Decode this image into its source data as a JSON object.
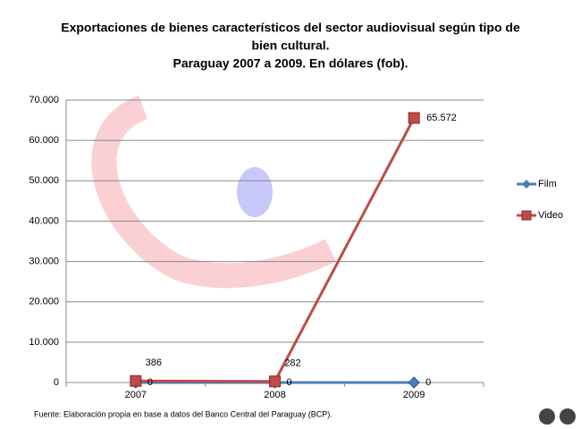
{
  "chart_data": {
    "type": "line",
    "title": [
      "Exportaciones  de bienes característicos  del sector audiovisual  según tipo de",
      "bien cultural.",
      "Paraguay  2007 a 2009. En dólares (fob)."
    ],
    "source": "Fuente:  Elaboración propia en base a datos del Banco Central del Paraguay (BCP).",
    "categories": [
      "2007",
      "2008",
      "2009"
    ],
    "series": [
      {
        "name": "Film",
        "color": "#4a7ebb",
        "values": [
          0,
          0,
          0
        ]
      },
      {
        "name": "Video",
        "color": "#be4b48",
        "values": [
          386,
          282,
          65572
        ],
        "value_labels": [
          "386",
          "282",
          "65.572"
        ]
      }
    ],
    "ylim": [
      0,
      70000
    ],
    "yticks": [
      0,
      {
        "value": 10000,
        "label": "10.000"
      },
      {
        "value": 20000,
        "label": "20.000"
      },
      {
        "value": 30000,
        "label": "30.000"
      },
      {
        "value": 40000,
        "label": "40.000"
      },
      {
        "value": 50000,
        "label": "50.000"
      },
      {
        "value": 60000,
        "label": "60.000"
      },
      {
        "value": 70000,
        "label": "70.000"
      }
    ],
    "grid": true,
    "legend": "right"
  }
}
